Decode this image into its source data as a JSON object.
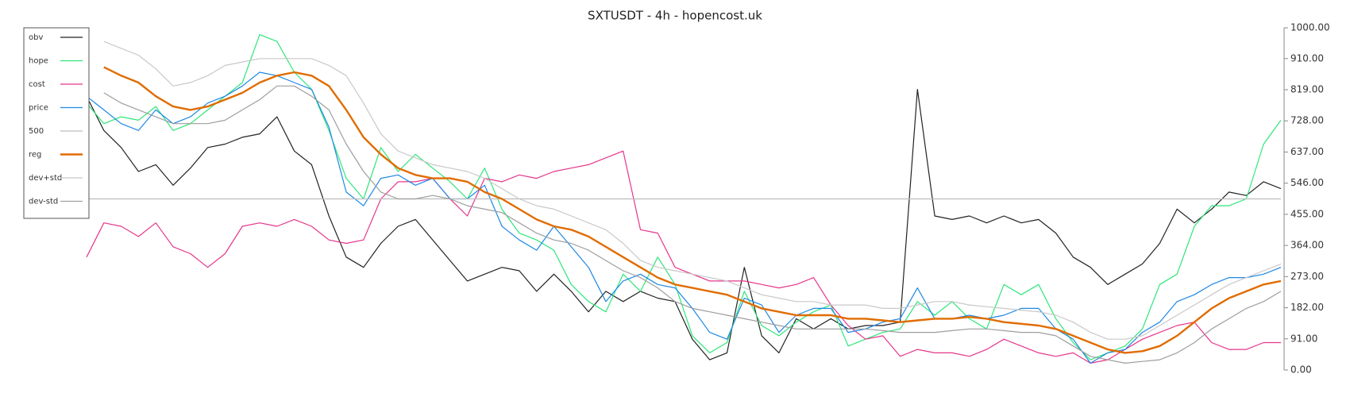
{
  "chart_data": {
    "type": "line",
    "title": "SXTUSDT - 4h - hopencost.uk",
    "ylim": [
      0,
      1000
    ],
    "yticks": [
      {
        "value": 0,
        "label": "0.00"
      },
      {
        "value": 91,
        "label": "91.00"
      },
      {
        "value": 182,
        "label": "182.00"
      },
      {
        "value": 273,
        "label": "273.00"
      },
      {
        "value": 364,
        "label": "364.00"
      },
      {
        "value": 455,
        "label": "455.00"
      },
      {
        "value": 546,
        "label": "546.00"
      },
      {
        "value": 637,
        "label": "637.00"
      },
      {
        "value": 728,
        "label": "728.00"
      },
      {
        "value": 819,
        "label": "819.00"
      },
      {
        "value": 910,
        "label": "910.00"
      },
      {
        "value": 1000,
        "label": "1000.00"
      }
    ],
    "legend": "upper left",
    "series": [
      {
        "name": "obv",
        "color": "#222222",
        "values": [
          800,
          700,
          650,
          580,
          600,
          540,
          590,
          650,
          660,
          680,
          690,
          740,
          640,
          600,
          450,
          330,
          300,
          370,
          420,
          440,
          380,
          320,
          260,
          280,
          300,
          290,
          230,
          280,
          230,
          170,
          230,
          200,
          230,
          210,
          200,
          90,
          30,
          50,
          300,
          100,
          50,
          150,
          120,
          150,
          120,
          130,
          130,
          140,
          820,
          450,
          440,
          450,
          430,
          450,
          430,
          440,
          400,
          330,
          300,
          250,
          280,
          310,
          370,
          470,
          430,
          470,
          520,
          510,
          550,
          530
        ]
      },
      {
        "name": "hope",
        "color": "#2ee67a",
        "values": [
          780,
          720,
          740,
          730,
          770,
          700,
          720,
          760,
          800,
          840,
          980,
          960,
          870,
          820,
          700,
          560,
          500,
          650,
          580,
          630,
          590,
          550,
          500,
          590,
          470,
          400,
          380,
          350,
          250,
          200,
          170,
          280,
          230,
          330,
          250,
          100,
          50,
          80,
          230,
          130,
          100,
          140,
          170,
          190,
          70,
          90,
          110,
          120,
          200,
          160,
          200,
          150,
          120,
          250,
          220,
          250,
          150,
          80,
          30,
          50,
          70,
          120,
          250,
          280,
          420,
          480,
          480,
          500,
          660,
          730
        ]
      },
      {
        "name": "cost",
        "color": "#e6358b",
        "values": [
          330,
          430,
          420,
          390,
          430,
          360,
          340,
          300,
          340,
          420,
          430,
          420,
          440,
          420,
          380,
          370,
          380,
          500,
          550,
          550,
          560,
          500,
          450,
          560,
          550,
          570,
          560,
          580,
          590,
          600,
          620,
          640,
          410,
          400,
          300,
          280,
          260,
          260,
          260,
          250,
          240,
          250,
          270,
          190,
          130,
          90,
          100,
          40,
          60,
          50,
          50,
          40,
          60,
          90,
          70,
          50,
          40,
          50,
          20,
          30,
          60,
          90,
          110,
          130,
          140,
          80,
          60,
          60,
          80,
          80
        ]
      },
      {
        "name": "price",
        "color": "#1e88e5",
        "values": [
          800,
          760,
          720,
          700,
          760,
          720,
          740,
          780,
          800,
          830,
          870,
          860,
          840,
          820,
          710,
          520,
          480,
          560,
          570,
          540,
          560,
          500,
          500,
          540,
          420,
          380,
          350,
          420,
          360,
          300,
          200,
          260,
          280,
          250,
          240,
          180,
          110,
          90,
          210,
          190,
          110,
          160,
          180,
          180,
          110,
          120,
          140,
          150,
          240,
          150,
          150,
          160,
          150,
          160,
          180,
          180,
          120,
          90,
          20,
          50,
          60,
          110,
          140,
          200,
          220,
          250,
          270,
          270,
          280,
          300
        ]
      },
      {
        "name": "500",
        "color": "#bdbdbd",
        "values": [
          500,
          500,
          500,
          500,
          500,
          500,
          500,
          500,
          500,
          500,
          500,
          500,
          500,
          500,
          500,
          500,
          500,
          500,
          500,
          500,
          500,
          500,
          500,
          500,
          500,
          500,
          500,
          500,
          500,
          500,
          500,
          500,
          500,
          500,
          500,
          500,
          500,
          500,
          500,
          500,
          500,
          500,
          500,
          500,
          500,
          500,
          500,
          500,
          500,
          500,
          500,
          500,
          500,
          500,
          500,
          500,
          500,
          500,
          500,
          500,
          500,
          500,
          500,
          500,
          500,
          500,
          500,
          500,
          500,
          500
        ]
      },
      {
        "name": "reg",
        "color": "#e06c00",
        "linewidth": 2.4,
        "values": [
          null,
          885,
          860,
          840,
          800,
          770,
          760,
          770,
          790,
          810,
          840,
          860,
          870,
          860,
          830,
          760,
          680,
          630,
          590,
          570,
          560,
          560,
          550,
          520,
          500,
          470,
          440,
          420,
          410,
          390,
          360,
          330,
          300,
          270,
          250,
          240,
          230,
          220,
          200,
          180,
          170,
          160,
          160,
          160,
          150,
          150,
          145,
          140,
          145,
          150,
          150,
          155,
          150,
          140,
          135,
          130,
          120,
          100,
          80,
          60,
          50,
          55,
          70,
          100,
          140,
          180,
          210,
          230,
          250,
          260
        ]
      },
      {
        "name": "dev+std",
        "color": "#c8c8c8",
        "values": [
          null,
          960,
          940,
          920,
          880,
          830,
          840,
          860,
          890,
          900,
          910,
          910,
          910,
          910,
          890,
          860,
          780,
          690,
          640,
          620,
          600,
          590,
          580,
          560,
          530,
          500,
          480,
          470,
          450,
          430,
          410,
          370,
          320,
          300,
          290,
          280,
          270,
          260,
          240,
          220,
          210,
          200,
          200,
          190,
          190,
          190,
          180,
          180,
          190,
          200,
          200,
          190,
          185,
          180,
          175,
          170,
          160,
          140,
          110,
          90,
          90,
          100,
          130,
          160,
          190,
          220,
          250,
          270,
          290,
          310
        ]
      },
      {
        "name": "dev-std",
        "color": "#9e9e9e",
        "values": [
          null,
          810,
          780,
          760,
          740,
          720,
          720,
          720,
          730,
          760,
          790,
          830,
          830,
          800,
          760,
          660,
          580,
          520,
          500,
          500,
          510,
          500,
          480,
          470,
          460,
          430,
          400,
          380,
          370,
          350,
          320,
          290,
          270,
          240,
          200,
          180,
          170,
          160,
          150,
          140,
          130,
          120,
          120,
          120,
          120,
          120,
          115,
          110,
          110,
          110,
          115,
          120,
          120,
          115,
          110,
          110,
          100,
          70,
          40,
          30,
          20,
          25,
          30,
          50,
          80,
          120,
          150,
          180,
          200,
          230
        ]
      }
    ]
  }
}
